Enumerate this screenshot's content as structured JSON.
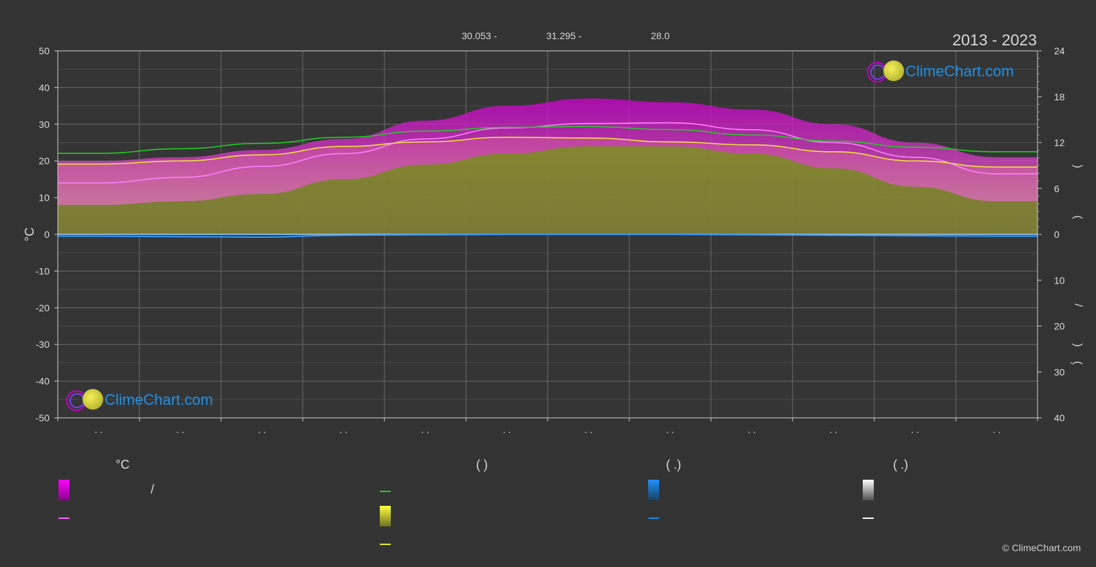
{
  "header": {
    "stat1": "30.053 -",
    "stat2": "31.295 -",
    "stat3": "28.0",
    "years": "2013 - 2023"
  },
  "brand": {
    "logo_text": "ClimeChart.com",
    "copyright": "© ClimeChart.com"
  },
  "legend": {
    "col1_head": "°C",
    "col2_head": "(          )",
    "col3_head": "(    .)",
    "col4_head": "(    .)",
    "col1_row1_text": "/",
    "colors": {
      "temp_range": "#e000e0",
      "avg_max": "#ff66ff",
      "daylight": "#22cc22",
      "sunshine": "#e8e830",
      "sunshine_line": "#e8e830",
      "precip": "#1e88e5",
      "precip_line": "#1e88e5",
      "snow": "#ffffff",
      "snow_line": "#ffffff"
    }
  },
  "chart_data": {
    "type": "area",
    "title": "",
    "ylabel": "°C",
    "ylim": [
      -50,
      50
    ],
    "y_ticks": [
      50,
      40,
      30,
      20,
      10,
      0,
      -10,
      -20,
      -30,
      -40,
      -50
    ],
    "y2_top_ticks": [
      24,
      18,
      12,
      6,
      0
    ],
    "y2_top_range": [
      0,
      24
    ],
    "y2_bottom_ticks": [
      0,
      10,
      20,
      30,
      40
    ],
    "y2_bottom_range": [
      0,
      40
    ],
    "y2_label_marks": [
      ")",
      "(",
      "/",
      ")",
      "(",
      "."
    ],
    "x_tick_labels": [
      ". .",
      ". .",
      ". .",
      ". .",
      ". .",
      ". .",
      ". .",
      ". .",
      ". .",
      ". .",
      ". .",
      ". ."
    ],
    "months": 12,
    "grid": true,
    "series": [
      {
        "key": "avg_max_temp",
        "color": "#ff80ff",
        "values": [
          14.0,
          15.5,
          18.5,
          22.0,
          26.0,
          29.0,
          30.2,
          30.4,
          28.5,
          25.0,
          21.0,
          16.5
        ]
      },
      {
        "key": "daylight_hours",
        "axis": "right-top",
        "color": "#22cc22",
        "values": [
          10.6,
          11.2,
          11.9,
          12.7,
          13.5,
          14.0,
          14.1,
          13.7,
          13.0,
          12.2,
          11.4,
          10.8
        ]
      },
      {
        "key": "sunshine_hours",
        "axis": "right-top",
        "color": "#f0e040",
        "values": [
          9.2,
          9.6,
          10.4,
          11.5,
          12.1,
          12.7,
          12.6,
          12.1,
          11.7,
          10.8,
          9.6,
          8.8
        ]
      },
      {
        "key": "precipitation",
        "axis": "right-bottom",
        "color": "#3399ff",
        "values": [
          0.4,
          0.5,
          0.6,
          0.2,
          0.1,
          0.0,
          0.0,
          0.0,
          0.1,
          0.2,
          0.3,
          0.4
        ]
      }
    ],
    "bands": {
      "temp_max_band": [
        20.0,
        21.0,
        23.0,
        26.0,
        31.0,
        35.0,
        37.0,
        36.0,
        34.0,
        30.0,
        25.0,
        21.0
      ],
      "temp_min_band": [
        8.0,
        9.0,
        11.0,
        15.0,
        19.0,
        22.0,
        24.0,
        24.0,
        22.0,
        18.0,
        13.0,
        9.0
      ]
    }
  }
}
